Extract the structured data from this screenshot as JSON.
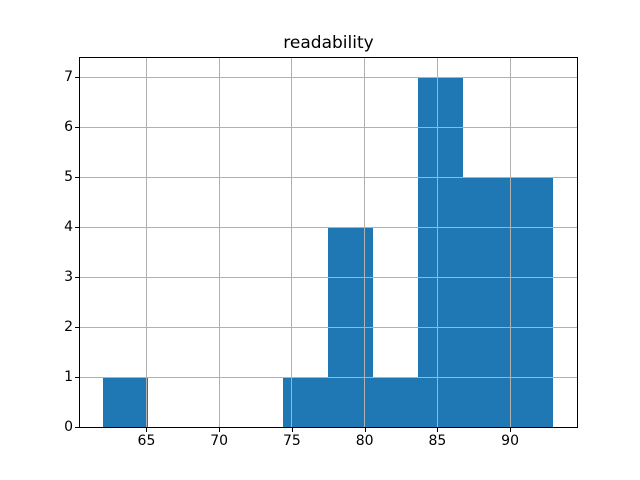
{
  "figure": {
    "background": "#ffffff"
  },
  "chart_data": {
    "type": "histogram",
    "title": "readability",
    "xlabel": "",
    "ylabel": "",
    "bin_edges": [
      62.0,
      65.09,
      68.19,
      71.28,
      74.38,
      77.47,
      80.57,
      83.66,
      86.76,
      89.85,
      92.95
    ],
    "counts": [
      1,
      0,
      0,
      0,
      1,
      4,
      1,
      7,
      5,
      5
    ],
    "xticks": [
      65,
      70,
      75,
      80,
      85,
      90
    ],
    "yticks": [
      0,
      1,
      2,
      3,
      4,
      5,
      6,
      7
    ],
    "xlim": [
      60.43,
      94.6
    ],
    "ylim": [
      0,
      7.38
    ],
    "grid": true,
    "grid_above_bars": true,
    "legend": false,
    "bar_color": "#1f77b4",
    "grid_color": "#b0b0b0",
    "axis_color": "#000000",
    "text_color": "#000000"
  }
}
